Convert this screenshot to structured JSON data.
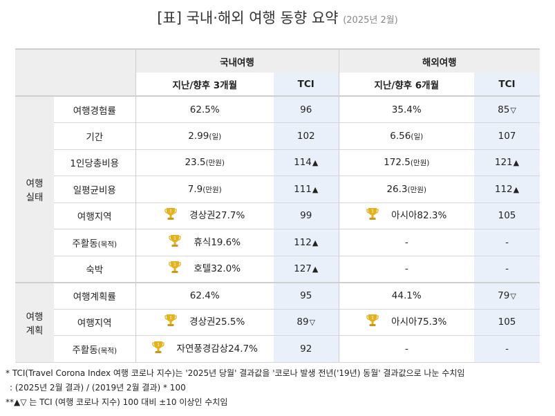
{
  "title": {
    "main": "[표] 국내·해외 여행 동향 요약",
    "sub": "(2025년 2월)"
  },
  "headers": {
    "domestic": "국내여행",
    "overseas": "해외여행",
    "domestic_period": "지난/향후 3개월",
    "overseas_period": "지난/향후 6개월",
    "tci": "TCI"
  },
  "groups": {
    "actual": [
      "여행",
      "실태"
    ],
    "plan": [
      "여행",
      "계획"
    ]
  },
  "rows": [
    {
      "label": "여행경험률",
      "dom": "62.5%",
      "dom_unit": "",
      "dom_tci": "96",
      "dom_mark": "",
      "ovs": "35.4%",
      "ovs_unit": "",
      "ovs_tci": "85",
      "ovs_mark": "▽"
    },
    {
      "label": "기간",
      "dom": "2.99",
      "dom_unit": "(일)",
      "dom_tci": "102",
      "dom_mark": "",
      "ovs": "6.56",
      "ovs_unit": "(일)",
      "ovs_tci": "107",
      "ovs_mark": ""
    },
    {
      "label": "1인당총비용",
      "dom": "23.5",
      "dom_unit": "(만원)",
      "dom_tci": "114",
      "dom_mark": "▲",
      "ovs": "172.5",
      "ovs_unit": "(만원)",
      "ovs_tci": "121",
      "ovs_mark": "▲"
    },
    {
      "label": "일평균비용",
      "dom": "7.9",
      "dom_unit": "(만원)",
      "dom_tci": "111",
      "dom_mark": "▲",
      "ovs": "26.3",
      "ovs_unit": "(만원)",
      "ovs_tci": "112",
      "ovs_mark": "▲"
    },
    {
      "label": "여행지역",
      "dom": "경상권27.7%",
      "dom_unit": "",
      "dom_tci": "99",
      "dom_mark": "",
      "ovs": "아시아82.3%",
      "ovs_unit": "",
      "ovs_tci": "105",
      "ovs_mark": ""
    },
    {
      "label": "주활동",
      "label_unit": "(목적)",
      "dom": "휴식19.6%",
      "dom_unit": "",
      "dom_tci": "112",
      "dom_mark": "▲",
      "ovs": "-",
      "ovs_unit": "",
      "ovs_tci": "-",
      "ovs_mark": ""
    },
    {
      "label": "숙박",
      "dom": "호텔32.0%",
      "dom_unit": "",
      "dom_tci": "127",
      "dom_mark": "▲",
      "ovs": "-",
      "ovs_unit": "",
      "ovs_tci": "-",
      "ovs_mark": ""
    },
    {
      "label": "여행계획률",
      "dom": "62.4%",
      "dom_unit": "",
      "dom_tci": "95",
      "dom_mark": "",
      "ovs": "44.1%",
      "ovs_unit": "",
      "ovs_tci": "79",
      "ovs_mark": "▽"
    },
    {
      "label": "여행지역",
      "dom": "경상권25.5%",
      "dom_unit": "",
      "dom_tci": "89",
      "dom_mark": "▽",
      "ovs": "아시아75.3%",
      "ovs_unit": "",
      "ovs_tci": "105",
      "ovs_mark": ""
    },
    {
      "label": "주활동",
      "label_unit": "(목적)",
      "dom": "자연풍경감상24.7%",
      "dom_unit": "",
      "dom_tci": "92",
      "dom_mark": "",
      "ovs": "-",
      "ovs_unit": "",
      "ovs_tci": "-",
      "ovs_mark": ""
    }
  ],
  "notes": [
    "* TCI(Travel Corona Index 여행 코로나 지수)는 '2025년 당월' 결과값을 '코로나 발생 전년('19년) 동월' 결과값으로 나눈 수치임",
    ": (2025년 2월 결과) / (2019년 2월 결과) * 100",
    "**▲▽ 는 TCI (여행 코로나 지수) 100 대비 ±10 이상인 수치임"
  ],
  "colors": {
    "header_gray": "#eeeeee",
    "tci_blue": "#eaf0f9",
    "trophy_gold": "#e3b21c"
  }
}
